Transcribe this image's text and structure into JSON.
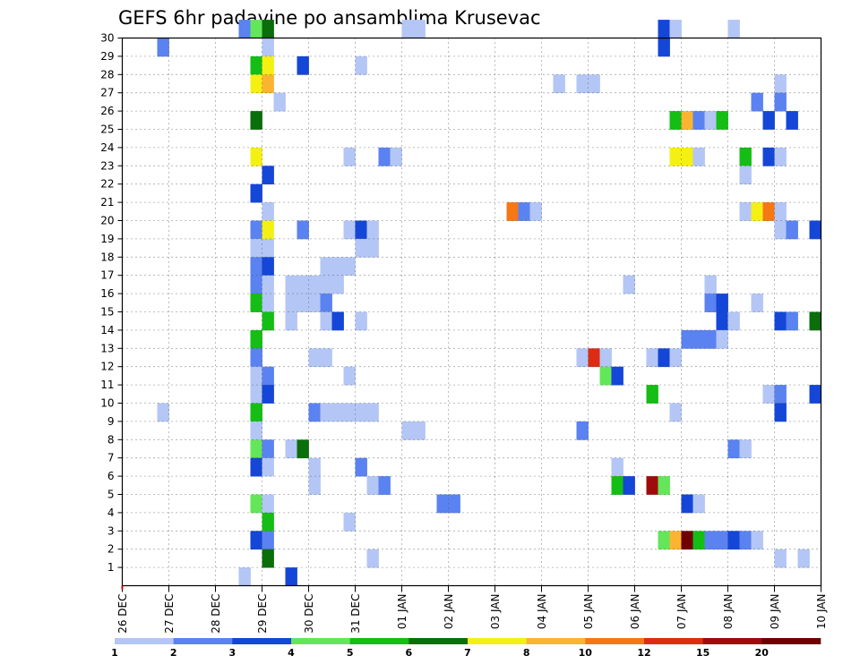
{
  "chart_data": {
    "type": "heatmap",
    "title": "GEFS 6hr padavine po ansamblima Krusevac",
    "x_tick_labels": [
      "26 DEC",
      "27 DEC",
      "28 DEC",
      "29 DEC",
      "30 DEC",
      "31 DEC",
      "01 JAN",
      "02 JAN",
      "03 JAN",
      "04 JAN",
      "05 JAN",
      "06 JAN",
      "07 JAN",
      "08 JAN",
      "09 JAN",
      "10 JAN"
    ],
    "y_tick_labels": [
      "1",
      "2",
      "3",
      "4",
      "5",
      "6",
      "7",
      "8",
      "9",
      "10",
      "11",
      "12",
      "13",
      "14",
      "15",
      "16",
      "17",
      "18",
      "19",
      "20",
      "21",
      "22",
      "23",
      "24",
      "25",
      "26",
      "27",
      "28",
      "29",
      "30"
    ],
    "y_range": [
      0,
      30
    ],
    "x_range_days": [
      0,
      15
    ],
    "steps_per_day": 4,
    "grid": true,
    "legend": {
      "placement": "bottom",
      "labels": [
        "1",
        "2",
        "3",
        "4",
        "5",
        "6",
        "7",
        "8",
        "10",
        "12",
        "15",
        "20"
      ],
      "colors": [
        "#b4c6f5",
        "#5a82f0",
        "#1446d7",
        "#64e65a",
        "#14be14",
        "#0a6e0a",
        "#f5f014",
        "#fab432",
        "#f57814",
        "#dc2d14",
        "#a00a0a",
        "#6e0000"
      ]
    },
    "cells": [
      [
        30,
        10,
        1
      ],
      [
        30,
        11,
        3
      ],
      [
        30,
        12,
        5
      ],
      [
        30,
        24,
        0
      ],
      [
        30,
        25,
        0
      ],
      [
        30,
        46,
        2
      ],
      [
        30,
        47,
        0
      ],
      [
        30,
        52,
        0
      ],
      [
        29,
        3,
        1
      ],
      [
        29,
        12,
        0
      ],
      [
        29,
        46,
        2
      ],
      [
        28,
        11,
        4
      ],
      [
        28,
        12,
        6
      ],
      [
        28,
        15,
        2
      ],
      [
        28,
        20,
        0
      ],
      [
        27,
        11,
        6
      ],
      [
        27,
        12,
        7
      ],
      [
        27,
        37,
        0
      ],
      [
        27,
        39,
        0
      ],
      [
        27,
        40,
        0
      ],
      [
        27,
        56,
        0
      ],
      [
        26,
        13,
        0
      ],
      [
        26,
        54,
        1
      ],
      [
        26,
        56,
        1
      ],
      [
        25,
        11,
        5
      ],
      [
        25,
        47,
        4
      ],
      [
        25,
        48,
        7
      ],
      [
        25,
        49,
        1
      ],
      [
        25,
        50,
        0
      ],
      [
        25,
        51,
        4
      ],
      [
        25,
        55,
        2
      ],
      [
        25,
        57,
        2
      ],
      [
        23,
        11,
        6
      ],
      [
        23,
        19,
        0
      ],
      [
        23,
        22,
        1
      ],
      [
        23,
        23,
        0
      ],
      [
        23,
        47,
        6
      ],
      [
        23,
        48,
        6
      ],
      [
        23,
        49,
        0
      ],
      [
        23,
        53,
        4
      ],
      [
        23,
        55,
        2
      ],
      [
        23,
        56,
        0
      ],
      [
        22,
        12,
        2
      ],
      [
        22,
        53,
        0
      ],
      [
        21,
        11,
        2
      ],
      [
        20,
        12,
        0
      ],
      [
        20,
        33,
        8
      ],
      [
        20,
        34,
        1
      ],
      [
        20,
        35,
        0
      ],
      [
        20,
        53,
        0
      ],
      [
        20,
        54,
        6
      ],
      [
        20,
        55,
        8
      ],
      [
        20,
        56,
        0
      ],
      [
        19,
        11,
        1
      ],
      [
        19,
        12,
        6
      ],
      [
        19,
        15,
        1
      ],
      [
        19,
        19,
        0
      ],
      [
        19,
        20,
        2
      ],
      [
        19,
        21,
        0
      ],
      [
        19,
        56,
        0
      ],
      [
        19,
        57,
        1
      ],
      [
        19,
        59,
        2
      ],
      [
        18,
        11,
        0
      ],
      [
        18,
        12,
        0
      ],
      [
        18,
        20,
        0
      ],
      [
        18,
        21,
        0
      ],
      [
        17,
        11,
        1
      ],
      [
        17,
        12,
        2
      ],
      [
        17,
        17,
        0
      ],
      [
        17,
        18,
        0
      ],
      [
        17,
        19,
        0
      ],
      [
        16,
        11,
        1
      ],
      [
        16,
        12,
        0
      ],
      [
        16,
        14,
        0
      ],
      [
        16,
        15,
        0
      ],
      [
        16,
        16,
        0
      ],
      [
        16,
        17,
        0
      ],
      [
        16,
        18,
        0
      ],
      [
        16,
        43,
        0
      ],
      [
        16,
        50,
        0
      ],
      [
        15,
        11,
        4
      ],
      [
        15,
        12,
        0
      ],
      [
        15,
        14,
        0
      ],
      [
        15,
        15,
        0
      ],
      [
        15,
        16,
        0
      ],
      [
        15,
        17,
        1
      ],
      [
        15,
        50,
        1
      ],
      [
        15,
        51,
        2
      ],
      [
        15,
        54,
        0
      ],
      [
        14,
        12,
        4
      ],
      [
        14,
        14,
        0
      ],
      [
        14,
        17,
        0
      ],
      [
        14,
        18,
        2
      ],
      [
        14,
        20,
        0
      ],
      [
        14,
        51,
        2
      ],
      [
        14,
        52,
        0
      ],
      [
        14,
        56,
        2
      ],
      [
        14,
        57,
        1
      ],
      [
        14,
        59,
        5
      ],
      [
        13,
        11,
        4
      ],
      [
        13,
        48,
        1
      ],
      [
        13,
        49,
        1
      ],
      [
        13,
        50,
        1
      ],
      [
        13,
        51,
        0
      ],
      [
        12,
        11,
        1
      ],
      [
        12,
        16,
        0
      ],
      [
        12,
        17,
        0
      ],
      [
        12,
        39,
        0
      ],
      [
        12,
        40,
        9
      ],
      [
        12,
        41,
        0
      ],
      [
        12,
        45,
        0
      ],
      [
        12,
        46,
        2
      ],
      [
        12,
        47,
        0
      ],
      [
        11,
        11,
        0
      ],
      [
        11,
        12,
        1
      ],
      [
        11,
        19,
        0
      ],
      [
        11,
        41,
        3
      ],
      [
        11,
        42,
        2
      ],
      [
        10,
        11,
        0
      ],
      [
        10,
        12,
        2
      ],
      [
        10,
        45,
        4
      ],
      [
        10,
        55,
        0
      ],
      [
        10,
        56,
        1
      ],
      [
        10,
        59,
        2
      ],
      [
        9,
        3,
        0
      ],
      [
        9,
        11,
        4
      ],
      [
        9,
        16,
        1
      ],
      [
        9,
        17,
        0
      ],
      [
        9,
        18,
        0
      ],
      [
        9,
        19,
        0
      ],
      [
        9,
        20,
        0
      ],
      [
        9,
        21,
        0
      ],
      [
        9,
        47,
        0
      ],
      [
        9,
        56,
        2
      ],
      [
        8,
        11,
        0
      ],
      [
        8,
        24,
        0
      ],
      [
        8,
        25,
        0
      ],
      [
        8,
        39,
        1
      ],
      [
        7,
        11,
        3
      ],
      [
        7,
        12,
        1
      ],
      [
        7,
        14,
        0
      ],
      [
        7,
        15,
        5
      ],
      [
        7,
        52,
        1
      ],
      [
        7,
        53,
        0
      ],
      [
        6,
        11,
        2
      ],
      [
        6,
        12,
        0
      ],
      [
        6,
        16,
        0
      ],
      [
        6,
        20,
        1
      ],
      [
        6,
        42,
        0
      ],
      [
        5,
        16,
        0
      ],
      [
        5,
        21,
        0
      ],
      [
        5,
        22,
        1
      ],
      [
        5,
        42,
        4
      ],
      [
        5,
        43,
        2
      ],
      [
        5,
        45,
        10
      ],
      [
        5,
        46,
        3
      ],
      [
        4,
        11,
        3
      ],
      [
        4,
        12,
        0
      ],
      [
        4,
        27,
        1
      ],
      [
        4,
        28,
        1
      ],
      [
        4,
        48,
        2
      ],
      [
        4,
        49,
        0
      ],
      [
        3,
        12,
        4
      ],
      [
        3,
        19,
        0
      ],
      [
        2,
        11,
        2
      ],
      [
        2,
        12,
        1
      ],
      [
        2,
        46,
        3
      ],
      [
        2,
        47,
        7
      ],
      [
        2,
        48,
        11
      ],
      [
        2,
        49,
        4
      ],
      [
        2,
        50,
        1
      ],
      [
        2,
        51,
        1
      ],
      [
        2,
        52,
        2
      ],
      [
        2,
        53,
        1
      ],
      [
        2,
        54,
        0
      ],
      [
        1,
        12,
        5
      ],
      [
        1,
        21,
        0
      ],
      [
        1,
        56,
        0
      ],
      [
        1,
        58,
        0
      ],
      [
        0,
        10,
        0
      ],
      [
        0,
        14,
        2
      ]
    ]
  }
}
